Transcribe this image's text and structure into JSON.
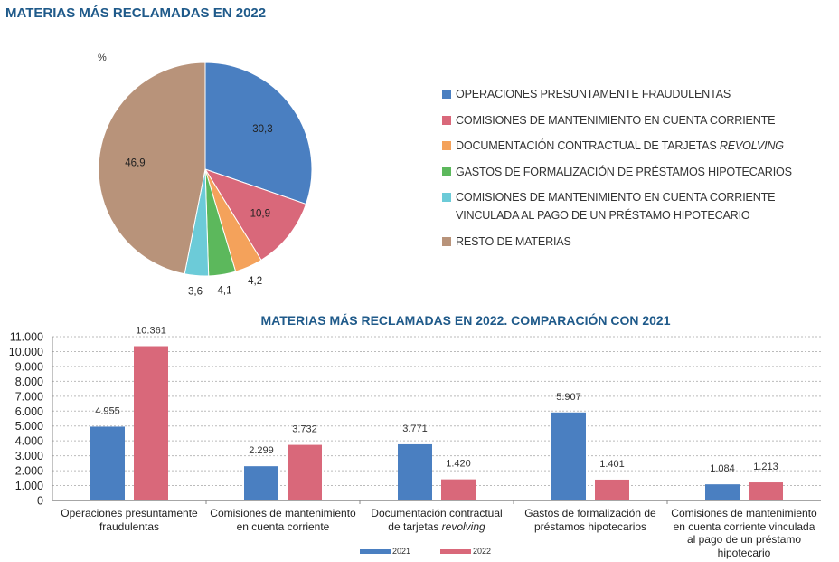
{
  "colors": {
    "blue": "#4a7fc1",
    "red": "#d9687a",
    "orange": "#f4a25b",
    "green": "#5cb85c",
    "cyan": "#6ccbd8",
    "brown": "#b8937a",
    "title": "#1f5a8a"
  },
  "chart_data": [
    {
      "type": "pie",
      "title": "MATERIAS MÁS RECLAMADAS EN 2022",
      "unit": "%",
      "legend_position": "right",
      "slices": [
        {
          "name": "OPERACIONES PRESUNTAMENTE FRAUDULENTAS",
          "value": 30.3,
          "label": "30,3",
          "color": "#4a7fc1"
        },
        {
          "name": "COMISIONES DE MANTENIMIENTO EN CUENTA CORRIENTE",
          "value": 10.9,
          "label": "10,9",
          "color": "#d9687a"
        },
        {
          "name": "DOCUMENTACIÓN CONTRACTUAL DE TARJETAS ",
          "name_italic": "REVOLVING",
          "value": 4.2,
          "label": "4,2",
          "color": "#f4a25b"
        },
        {
          "name": "GASTOS DE FORMALIZACIÓN DE PRÉSTAMOS HIPOTECARIOS",
          "value": 4.1,
          "label": "4,1",
          "color": "#5cb85c"
        },
        {
          "name": "COMISIONES DE MANTENIMIENTO EN CUENTA CORRIENTE VINCULADA AL PAGO DE UN PRÉSTAMO HIPOTECARIO",
          "value": 3.6,
          "label": "3,6",
          "color": "#6ccbd8"
        },
        {
          "name": "RESTO DE MATERIAS",
          "value": 46.9,
          "label": "46,9",
          "color": "#b8937a"
        }
      ]
    },
    {
      "type": "bar",
      "title": "MATERIAS MÁS RECLAMADAS EN 2022. COMPARACIÓN CON 2021",
      "ylim": [
        0,
        11000
      ],
      "yticks": [
        "0",
        "1.000",
        "2.000",
        "3.000",
        "4.000",
        "5.000",
        "6.000",
        "7.000",
        "8.000",
        "9.000",
        "10.000",
        "11.000"
      ],
      "grid": true,
      "legend_position": "bottom",
      "categories": [
        {
          "lines": [
            "Operaciones presuntamente",
            "fraudulentas"
          ]
        },
        {
          "lines": [
            "Comisiones de mantenimiento",
            "en cuenta corriente"
          ]
        },
        {
          "lines": [
            "Documentación contractual",
            "de tarjetas "
          ],
          "italic": "revolving"
        },
        {
          "lines": [
            "Gastos de formalización de",
            "préstamos hipotecarios"
          ]
        },
        {
          "lines": [
            "Comisiones de mantenimiento",
            "en cuenta corriente vinculada",
            "al pago de un préstamo",
            "hipotecario"
          ]
        }
      ],
      "series": [
        {
          "name": "2021",
          "color": "#4a7fc1",
          "values": [
            4955,
            2299,
            3771,
            5907,
            1084
          ],
          "labels": [
            "4.955",
            "2.299",
            "3.771",
            "5.907",
            "1.084"
          ]
        },
        {
          "name": "2022",
          "color": "#d9687a",
          "values": [
            10361,
            3732,
            1420,
            1401,
            1213
          ],
          "labels": [
            "10.361",
            "3.732",
            "1.420",
            "1.401",
            "1.213"
          ]
        }
      ]
    }
  ]
}
